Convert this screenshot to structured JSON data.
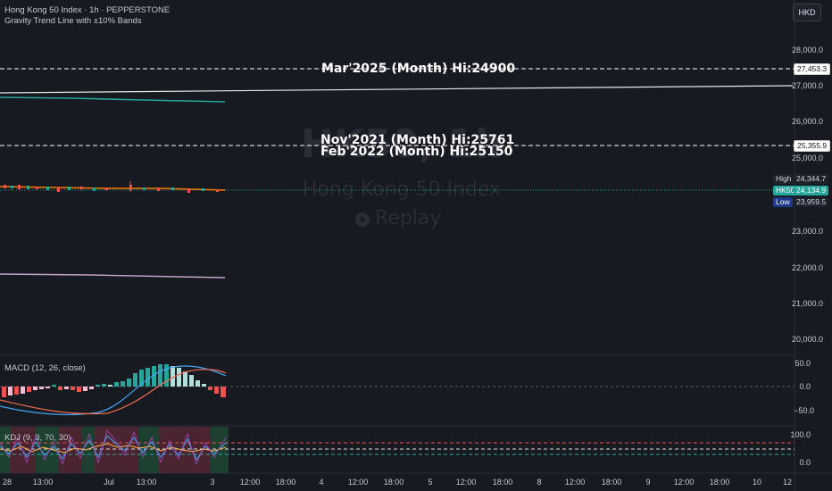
{
  "header": {
    "symbol_line": "Hong Kong 50 Index · 1h · PEPPERSTONE",
    "indicator_line": "Gravity Trend Line with ±10% Bands",
    "currency_button": "HKD"
  },
  "watermark": {
    "ticker": "HK50, 1h",
    "name": "Hong Kong 50 Index",
    "replay": "Replay",
    "replay_icon": "replay-icon"
  },
  "levels": [
    {
      "label": "Mar'2025 (Month) Hi:24900",
      "price_tag": "27,453.3"
    },
    {
      "label": "Nov'2021 (Month) Hi:25761",
      "price_tag": "25,355.9"
    },
    {
      "label": "Feb'2022 (Month) Hi:25150"
    }
  ],
  "price_axis": {
    "ticks": [
      "28,000.0",
      "27,000.0",
      "26,000.0",
      "25,000.0",
      "23,000.0",
      "22,000.0",
      "21,000.0",
      "20,000.0"
    ],
    "high": {
      "label": "High",
      "value": "24,344.7"
    },
    "current": {
      "label": "HK50",
      "value": "24,134.9"
    },
    "low": {
      "label": "Low",
      "value": "23,959.5"
    }
  },
  "macd": {
    "title": "MACD (12, 26, close)",
    "ticks": [
      "50.0",
      "0.0",
      "−50.0"
    ]
  },
  "kdj": {
    "title": "KDJ (9, 3, 70, 30)",
    "ticks": [
      "100.0",
      "0.0"
    ]
  },
  "time_axis": {
    "ticks": [
      "28",
      "13:00",
      "Jul",
      "13:00",
      "3",
      "12:00",
      "18:00",
      "4",
      "12:00",
      "18:00",
      "5",
      "12:00",
      "18:00",
      "8",
      "12:00",
      "18:00",
      "9",
      "12:00",
      "18:00",
      "10",
      "12"
    ]
  },
  "colors": {
    "background": "#181a21",
    "up": "#26a69a",
    "down": "#ef5350",
    "level_line": "#ffffff",
    "trend_top": "#e8e8e8",
    "trend_mid": "#26a69a",
    "trend_low": "#b39ddb",
    "current_price_tag": "#26a69a",
    "low_tag": "#2962ff"
  }
}
